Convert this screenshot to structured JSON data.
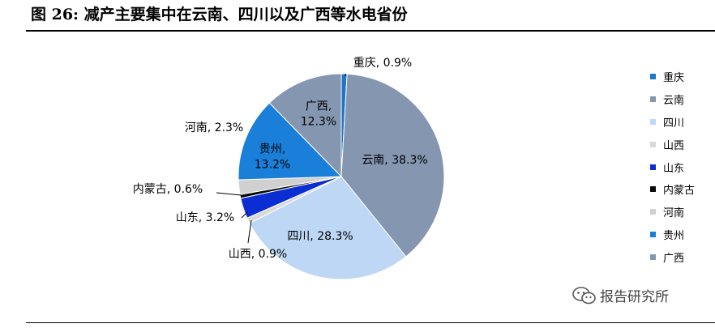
{
  "figure": {
    "title": "图 26:  减产主要集中在云南、四川以及广西等水电省份"
  },
  "chart_data": {
    "type": "pie",
    "title": "",
    "unit": "%",
    "slices": [
      {
        "label": "重庆",
        "value": 0.9,
        "display": "重庆, 0.9%",
        "color": "#1f77c8"
      },
      {
        "label": "云南",
        "value": 38.3,
        "display": "云南, 38.3%",
        "color": "#8496b0"
      },
      {
        "label": "四川",
        "value": 28.3,
        "display": "四川, 28.3%",
        "color": "#bdd7f4"
      },
      {
        "label": "山西",
        "value": 0.9,
        "display": "山西, 0.9%",
        "color": "#d9d9d9"
      },
      {
        "label": "山东",
        "value": 3.2,
        "display": "山东, 3.2%",
        "color": "#0a2ed2"
      },
      {
        "label": "内蒙古",
        "value": 0.6,
        "display": "内蒙古, 0.6%",
        "color": "#0a0a0a"
      },
      {
        "label": "河南",
        "value": 2.3,
        "display": "河南, 2.3%",
        "color": "#d0d0d0"
      },
      {
        "label": "贵州",
        "value": 13.2,
        "display": "贵州,\n13.2%",
        "color": "#1a7fd9"
      },
      {
        "label": "广西",
        "value": 12.3,
        "display": "广西,\n12.3%",
        "color": "#8496b0"
      }
    ],
    "legend": {
      "position": "right",
      "entries": [
        "重庆",
        "云南",
        "四川",
        "山西",
        "山东",
        "内蒙古",
        "河南",
        "贵州",
        "广西"
      ]
    }
  },
  "watermark": {
    "icon": "wechat-icon",
    "text": "报告研究所"
  }
}
